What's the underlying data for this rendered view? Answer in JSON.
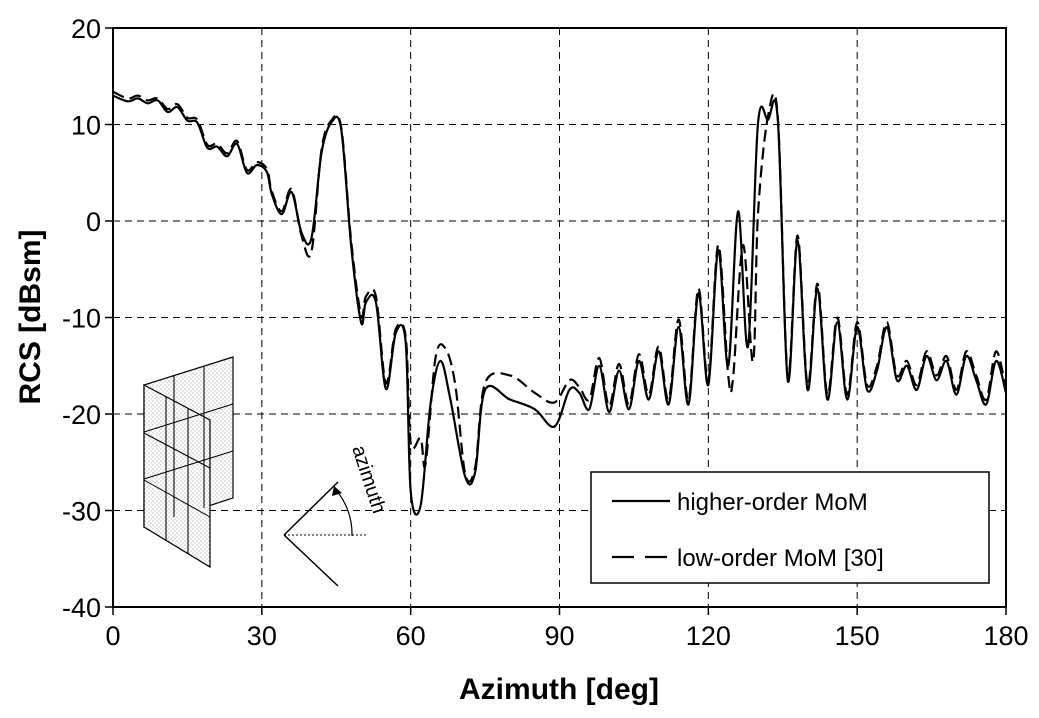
{
  "chart_data": {
    "type": "line",
    "xlabel": "Azimuth [deg]",
    "ylabel": "RCS [dBsm]",
    "xlim": [
      0,
      180
    ],
    "ylim": [
      -40,
      20
    ],
    "xticks": [
      0,
      30,
      60,
      90,
      120,
      150,
      180
    ],
    "yticks": [
      -40,
      -30,
      -20,
      -10,
      0,
      10,
      20
    ],
    "grid": true,
    "grid_style": "dashed",
    "legend_position": "bottom-right",
    "inset_label": "azimuth",
    "series": [
      {
        "name": "higher-order MoM",
        "style": "solid",
        "x": [
          0,
          3,
          5,
          7,
          9,
          11,
          13,
          15,
          17,
          19,
          21,
          23,
          25,
          27,
          29,
          31,
          32,
          34,
          36,
          38,
          40,
          42,
          44,
          46,
          48,
          50,
          51,
          53,
          55,
          57,
          59,
          60,
          62,
          64,
          66,
          68,
          71,
          73,
          75,
          80,
          85,
          89,
          92,
          94,
          96,
          98,
          100,
          102,
          104,
          106,
          108,
          110,
          112,
          114,
          116,
          118,
          120,
          122,
          124,
          126,
          128,
          130,
          132,
          134,
          136,
          138,
          140,
          142,
          144,
          146,
          148,
          150,
          152,
          154,
          156,
          158,
          160,
          162,
          164,
          166,
          168,
          170,
          172,
          174,
          176,
          178,
          180
        ],
        "y": [
          13,
          12.4,
          12.7,
          12.2,
          12.5,
          11.3,
          11.8,
          10.4,
          10.2,
          7.6,
          7.7,
          6.7,
          8,
          5,
          5.8,
          5.1,
          2.8,
          0.7,
          3,
          -1.2,
          -1.8,
          7,
          10.2,
          9.5,
          -2.5,
          -10.5,
          -8.4,
          -8.4,
          -17.4,
          -11.6,
          -12.6,
          -28,
          -29.5,
          -19,
          -14.5,
          -18.5,
          -26.5,
          -26,
          -17.5,
          -18.5,
          -19.5,
          -21.3,
          -17.5,
          -17.8,
          -19.5,
          -15,
          -19.8,
          -15.5,
          -19.5,
          -14.5,
          -18.5,
          -13.5,
          -19,
          -11,
          -19,
          -7.5,
          -17,
          -3,
          -15,
          1,
          -13,
          10,
          10.5,
          10.5,
          -16.5,
          -2,
          -17.5,
          -7,
          -18.5,
          -10.5,
          -18.5,
          -11,
          -17.5,
          -15.5,
          -11,
          -16.5,
          -15,
          -17.5,
          -14,
          -16.5,
          -14.5,
          -18,
          -14,
          -16.5,
          -19,
          -14.5,
          -17.8
        ]
      },
      {
        "name": "low-order MoM [30]",
        "style": "dashed",
        "x": [
          0,
          3,
          5,
          7,
          9,
          11,
          13,
          15,
          17,
          19,
          21,
          23,
          25,
          27,
          29,
          31,
          32,
          34,
          36,
          38,
          40,
          42,
          44,
          46,
          48,
          50,
          51,
          53,
          55,
          57,
          59,
          60,
          62,
          63,
          65,
          67,
          69,
          71,
          73,
          75,
          80,
          85,
          89,
          92,
          94,
          96,
          98,
          100,
          102,
          104,
          106,
          108,
          110,
          112,
          114,
          116,
          118,
          120,
          122,
          124,
          125,
          127,
          129,
          130,
          132,
          134,
          136,
          138,
          140,
          142,
          144,
          146,
          148,
          150,
          152,
          154,
          156,
          158,
          160,
          162,
          164,
          166,
          168,
          170,
          172,
          174,
          176,
          178,
          180
        ],
        "y": [
          13.4,
          12.7,
          13,
          12.5,
          12.7,
          11.6,
          12.1,
          10.7,
          10.5,
          7.9,
          8,
          7,
          8.3,
          5.3,
          6.1,
          5.4,
          3.1,
          1,
          3.3,
          -1.5,
          -3.2,
          7.3,
          10.4,
          9.7,
          -2,
          -9.8,
          -7.8,
          -7.8,
          -16.8,
          -11.2,
          -12,
          -23,
          -22.5,
          -25.2,
          -14.2,
          -13.2,
          -17,
          -26.2,
          -25.5,
          -16.8,
          -16,
          -17.8,
          -18.8,
          -16.5,
          -17.2,
          -18.5,
          -14.2,
          -19.2,
          -14.8,
          -19,
          -13.8,
          -18,
          -13,
          -18.5,
          -10.2,
          -18.5,
          -7,
          -16.5,
          -2.5,
          -16,
          -16.2,
          -2.5,
          -14.6,
          0.6,
          10.8,
          10.8,
          -16,
          -1.5,
          -17,
          -6.5,
          -18,
          -10,
          -18,
          -10.5,
          -17,
          -15,
          -10.5,
          -16,
          -14.5,
          -17,
          -13.5,
          -16,
          -14,
          -17.5,
          -13.5,
          -16,
          -18.5,
          -13.5,
          -17.5
        ]
      }
    ]
  }
}
